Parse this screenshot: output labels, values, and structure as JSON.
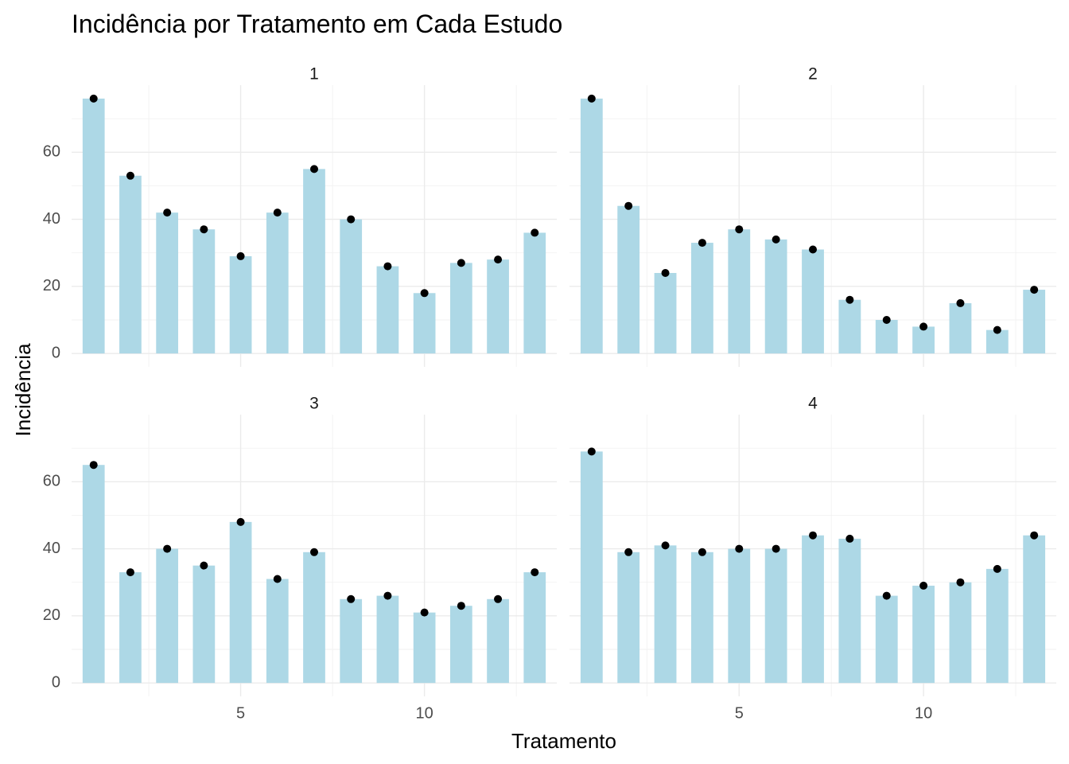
{
  "chart_data": {
    "type": "bar",
    "title": "Incidência por Tratamento em Cada Estudo",
    "xlabel": "Tratamento",
    "ylabel": "Incidência",
    "xlim": [
      0.4,
      13.6
    ],
    "ylim": [
      -4,
      80
    ],
    "x_ticks": [
      5,
      10
    ],
    "y_ticks": [
      0,
      20,
      40,
      60
    ],
    "grid": true,
    "colors": {
      "bar": "#add8e6",
      "point": "#000000",
      "grid": "#ebebeb"
    },
    "facets": [
      {
        "label": "1",
        "x": [
          1,
          2,
          3,
          4,
          5,
          6,
          7,
          8,
          9,
          10,
          11,
          12,
          13
        ],
        "values": [
          76,
          53,
          42,
          37,
          29,
          42,
          55,
          40,
          26,
          18,
          27,
          28,
          36
        ]
      },
      {
        "label": "2",
        "x": [
          1,
          2,
          3,
          4,
          5,
          6,
          7,
          8,
          9,
          10,
          11,
          12,
          13
        ],
        "values": [
          76,
          44,
          24,
          33,
          37,
          34,
          31,
          16,
          10,
          8,
          15,
          7,
          19
        ]
      },
      {
        "label": "3",
        "x": [
          1,
          2,
          3,
          4,
          5,
          6,
          7,
          8,
          9,
          10,
          11,
          12,
          13
        ],
        "values": [
          65,
          33,
          40,
          35,
          48,
          31,
          39,
          25,
          26,
          21,
          23,
          25,
          33
        ]
      },
      {
        "label": "4",
        "x": [
          1,
          2,
          3,
          4,
          5,
          6,
          7,
          8,
          9,
          10,
          11,
          12,
          13
        ],
        "values": [
          69,
          39,
          41,
          39,
          40,
          40,
          44,
          43,
          26,
          29,
          30,
          34,
          44
        ]
      }
    ]
  }
}
